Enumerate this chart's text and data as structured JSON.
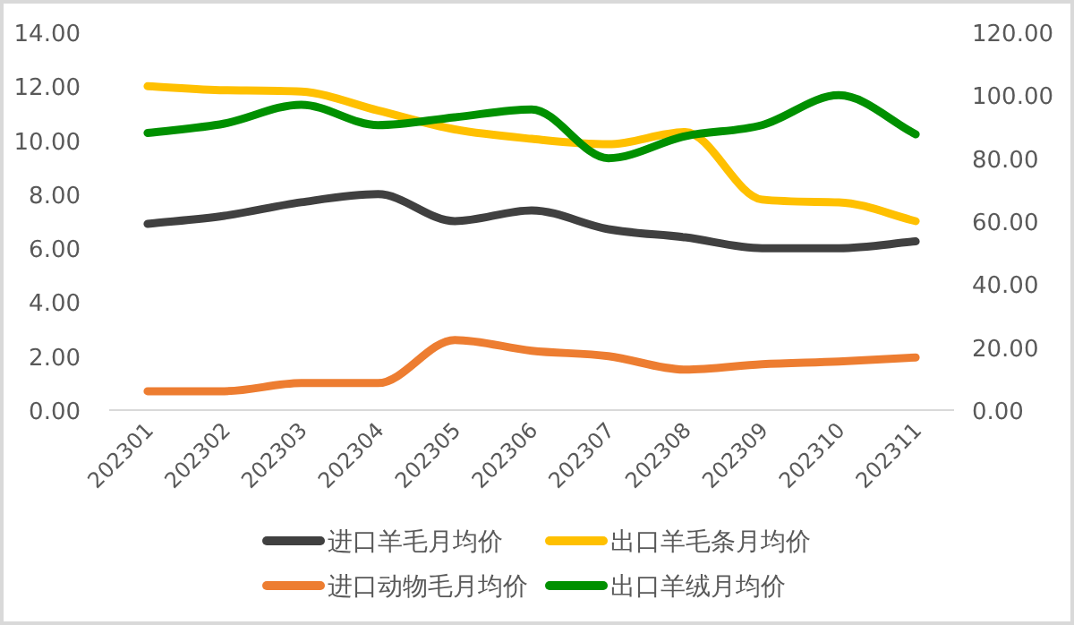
{
  "chart_data": {
    "type": "line",
    "categories": [
      "202301",
      "202302",
      "202303",
      "202304",
      "202305",
      "202306",
      "202307",
      "202308",
      "202309",
      "202310",
      "202311"
    ],
    "series": [
      {
        "name": "进口羊毛月均价",
        "color": "#404040",
        "values": [
          6.9,
          7.2,
          7.7,
          8.0,
          7.0,
          7.4,
          6.7,
          6.4,
          6.0,
          6.0,
          6.25
        ]
      },
      {
        "name": "出口羊毛条月均价",
        "color": "#ffc000",
        "values": [
          12.0,
          11.85,
          11.8,
          11.1,
          10.4,
          10.05,
          9.85,
          10.3,
          7.8,
          7.7,
          7.0
        ]
      },
      {
        "name": "进口动物毛月均价",
        "color": "#ed7d31",
        "values": [
          0.7,
          0.7,
          1.0,
          1.0,
          2.6,
          2.2,
          2.0,
          1.5,
          1.7,
          1.8,
          1.95
        ]
      },
      {
        "name": "出口羊绒月均价",
        "color": "#009000",
        "axis": "y2",
        "values": [
          88,
          91,
          97,
          90.5,
          93,
          95.5,
          80,
          87,
          90.5,
          100,
          87.6
        ]
      }
    ],
    "ylim": [
      0,
      14
    ],
    "yticks": [
      {
        "value": 0,
        "label": "0.00"
      },
      {
        "value": 2,
        "label": "2.00"
      },
      {
        "value": 4,
        "label": "4.00"
      },
      {
        "value": 6,
        "label": "6.00"
      },
      {
        "value": 8,
        "label": "8.00"
      },
      {
        "value": 10,
        "label": "10.00"
      },
      {
        "value": 12,
        "label": "12.00"
      },
      {
        "value": 14,
        "label": "14.00"
      }
    ],
    "y2lim": [
      0,
      120
    ],
    "y2ticks": [
      {
        "value": 0,
        "label": "0.00"
      },
      {
        "value": 20,
        "label": "20.00"
      },
      {
        "value": 40,
        "label": "40.00"
      },
      {
        "value": 60,
        "label": "60.00"
      },
      {
        "value": 80,
        "label": "80.00"
      },
      {
        "value": 100,
        "label": "100.00"
      },
      {
        "value": 120,
        "label": "120.00"
      }
    ],
    "legend": "bottom",
    "marker": "none"
  }
}
